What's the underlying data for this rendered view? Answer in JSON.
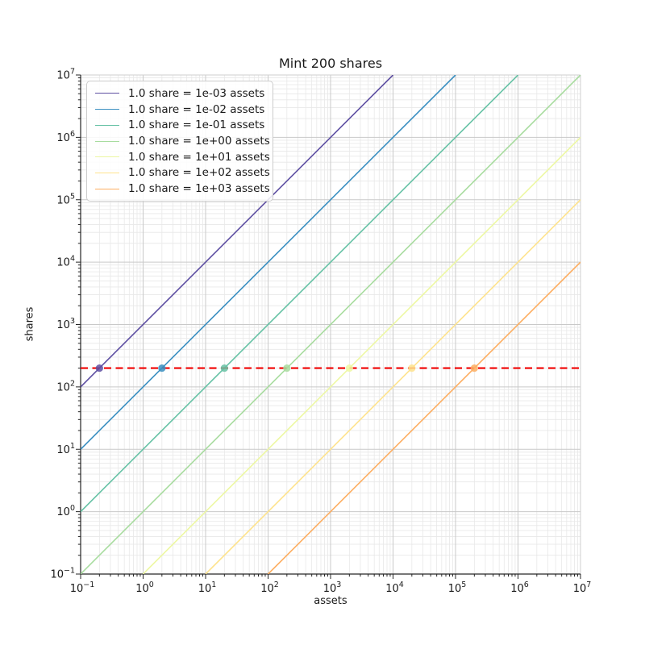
{
  "chart_data": {
    "type": "line",
    "title": "Mint 200 shares",
    "xlabel": "assets",
    "ylabel": "shares",
    "xscale": "log",
    "yscale": "log",
    "xlim": [
      0.1,
      10000000
    ],
    "ylim": [
      0.1,
      10000000
    ],
    "x_tick_exponents": [
      -1,
      0,
      1,
      2,
      3,
      4,
      5,
      6,
      7
    ],
    "y_tick_exponents": [
      -1,
      0,
      1,
      2,
      3,
      4,
      5,
      6,
      7
    ],
    "grid": "both-major-and-minor",
    "legend_position": "upper left",
    "target_shares": 200,
    "series": [
      {
        "name": "1.0 share = 1e-03 assets",
        "rate_assets_per_share": 0.001,
        "color": "#5e4fa2",
        "line_endpoints_assets_shares": [
          [
            0.1,
            100
          ],
          [
            10000,
            10000000
          ]
        ],
        "marker": {
          "assets": 0.2,
          "shares": 200
        }
      },
      {
        "name": "1.0 share = 1e-02 assets",
        "rate_assets_per_share": 0.01,
        "color": "#3a8fc1",
        "line_endpoints_assets_shares": [
          [
            0.1,
            10
          ],
          [
            100000,
            10000000
          ]
        ],
        "marker": {
          "assets": 2,
          "shares": 200
        }
      },
      {
        "name": "1.0 share = 1e-01 assets",
        "rate_assets_per_share": 0.1,
        "color": "#66c2a5",
        "line_endpoints_assets_shares": [
          [
            0.1,
            1
          ],
          [
            1000000,
            10000000
          ]
        ],
        "marker": {
          "assets": 20,
          "shares": 200
        }
      },
      {
        "name": "1.0 share = 1e+00 assets",
        "rate_assets_per_share": 1,
        "color": "#a8dc9f",
        "line_endpoints_assets_shares": [
          [
            0.1,
            0.1
          ],
          [
            10000000,
            10000000
          ]
        ],
        "marker": {
          "assets": 200,
          "shares": 200
        }
      },
      {
        "name": "1.0 share = 1e+01 assets",
        "rate_assets_per_share": 10,
        "color": "#edf8a3",
        "line_endpoints_assets_shares": [
          [
            1,
            0.1
          ],
          [
            10000000,
            1000000
          ]
        ],
        "marker": {
          "assets": 2000,
          "shares": 200
        }
      },
      {
        "name": "1.0 share = 1e+02 assets",
        "rate_assets_per_share": 100,
        "color": "#fee38d",
        "line_endpoints_assets_shares": [
          [
            10,
            0.1
          ],
          [
            10000000,
            100000
          ]
        ],
        "marker": {
          "assets": 20000,
          "shares": 200
        }
      },
      {
        "name": "1.0 share = 1e+03 assets",
        "rate_assets_per_share": 1000,
        "color": "#fdae61",
        "line_endpoints_assets_shares": [
          [
            100,
            0.1
          ],
          [
            10000000,
            10000
          ]
        ],
        "marker": {
          "assets": 200000,
          "shares": 200
        }
      }
    ],
    "reference_line": {
      "type": "horizontal",
      "shares": 200,
      "color": "#f00000",
      "style": "dashed"
    },
    "colors": {
      "major_grid": "#c9c9c9",
      "minor_grid": "#e8e8e8",
      "spine_dark": "#262626",
      "spine_light": "#cfcfcf",
      "text": "#1a1a1a"
    }
  }
}
